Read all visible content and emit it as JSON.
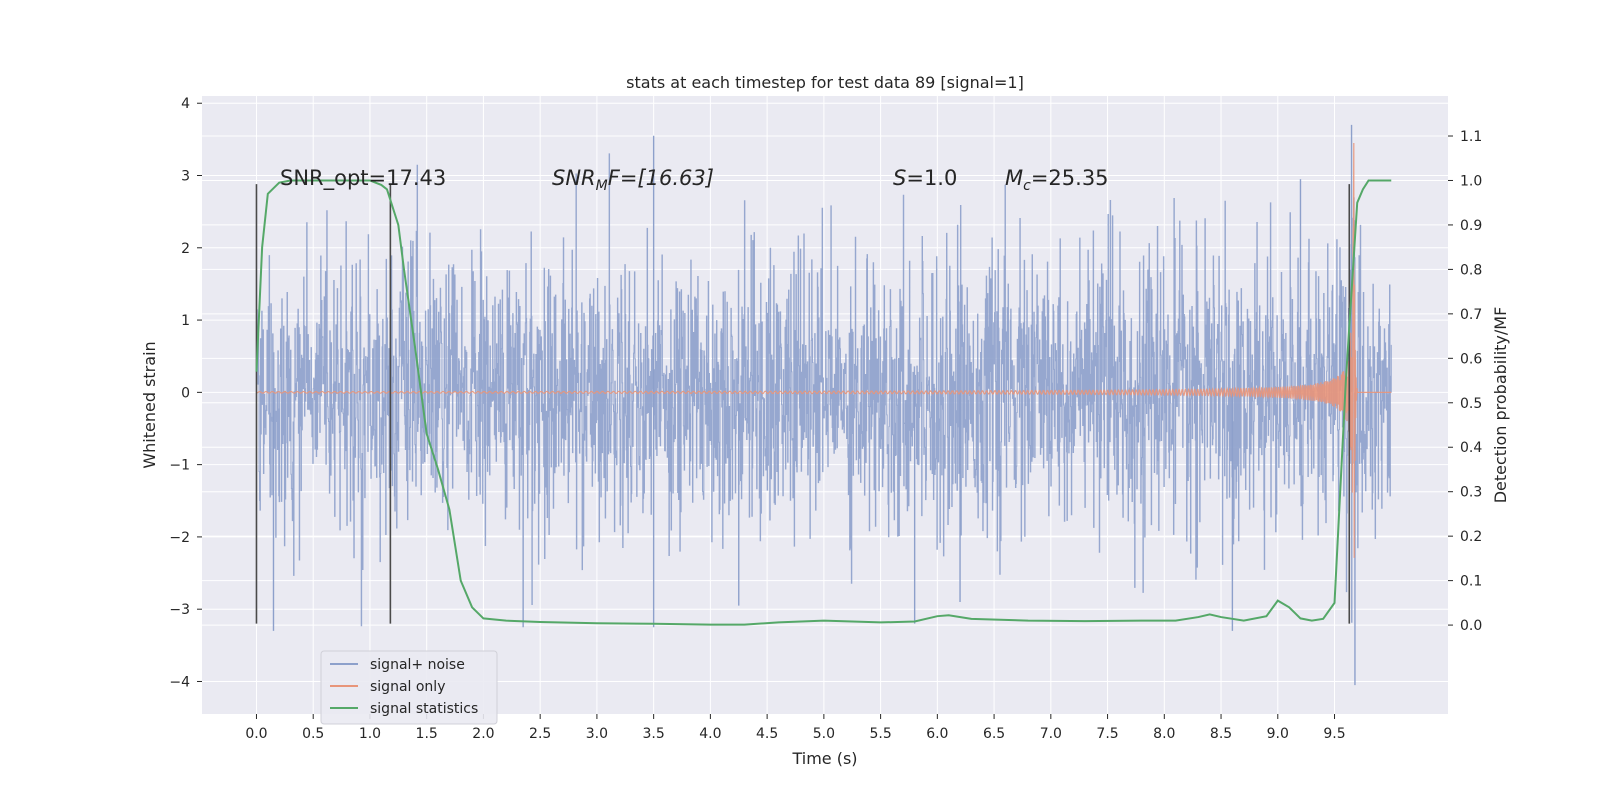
{
  "chart_data": {
    "type": "line",
    "title": "stats at each timestep for test data 89 [signal=1]",
    "xlabel": "Time (s)",
    "ylabel": "Whitened strain",
    "ylabel_right": "Detection probability/MF",
    "xlim": [
      -0.48,
      10.5
    ],
    "ylim": [
      -4.45,
      4.1
    ],
    "ylim_right": [
      -0.2,
      1.19
    ],
    "grid": true,
    "x_ticks": [
      "0.0",
      "0.5",
      "1.0",
      "1.5",
      "2.0",
      "2.5",
      "3.0",
      "3.5",
      "4.0",
      "4.5",
      "5.0",
      "5.5",
      "6.0",
      "6.5",
      "7.0",
      "7.5",
      "8.0",
      "8.5",
      "9.0",
      "9.5"
    ],
    "y_ticks": [
      "4",
      "3",
      "2",
      "1",
      "0",
      "−1",
      "−2",
      "−3",
      "−4"
    ],
    "y_right_ticks": [
      "1.1",
      "1.0",
      "0.9",
      "0.8",
      "0.7",
      "0.6",
      "0.5",
      "0.4",
      "0.3",
      "0.2",
      "0.1",
      "0.0"
    ],
    "colors": {
      "noise": "#8da0cb",
      "signal": "#e8957a",
      "stats": "#55a868",
      "marker": "#4a4a4a",
      "plot_bg": "#eaeaf2",
      "grid": "#ffffff"
    },
    "annotations": [
      {
        "key": "snr_opt",
        "text": "SNR_opt=17.43"
      },
      {
        "key": "snr_mf",
        "text": "SNRMF=[16.63]",
        "base": "SNR",
        "sub": "M",
        "rest": "F=[16.63]"
      },
      {
        "key": "s",
        "text": "S=1.0",
        "italic": "S",
        "rest": "=1.0"
      },
      {
        "key": "mc",
        "text": "Mc=25.35",
        "base": "M",
        "sub": "c",
        "rest": "=25.35"
      }
    ],
    "vertical_markers": [
      {
        "x": 0.0,
        "ymin": -3.2,
        "ymax": 2.88
      },
      {
        "x": 1.18,
        "ymin": -3.2,
        "ymax": 2.88
      },
      {
        "x": 9.63,
        "ymin": -3.2,
        "ymax": 2.88
      }
    ],
    "series": [
      {
        "name": "signal+ noise",
        "kind": "noise",
        "x_range": [
          0.0,
          10.0
        ],
        "typical_abs": 1.8,
        "notable_peaks": [
          {
            "x": 3.5,
            "y": 3.55
          },
          {
            "x": 3.5,
            "y": -3.25
          },
          {
            "x": 4.25,
            "y": -2.95
          },
          {
            "x": 5.8,
            "y": -3.2
          },
          {
            "x": 6.2,
            "y": -2.9
          },
          {
            "x": 0.15,
            "y": -3.3
          },
          {
            "x": 2.35,
            "y": -3.25
          },
          {
            "x": 8.6,
            "y": -3.3
          },
          {
            "x": 9.2,
            "y": 2.95
          },
          {
            "x": 9.65,
            "y": 3.7
          },
          {
            "x": 9.68,
            "y": -4.05
          }
        ]
      },
      {
        "name": "signal only",
        "kind": "chirp",
        "x_range": [
          0.0,
          10.0
        ],
        "merger_time": 9.67,
        "peak_amplitude": 3.45
      },
      {
        "name": "signal statistics",
        "kind": "line",
        "axis": "right",
        "points": [
          [
            0.0,
            0.57
          ],
          [
            0.05,
            0.85
          ],
          [
            0.1,
            0.97
          ],
          [
            0.2,
            0.995
          ],
          [
            0.3,
            1.0
          ],
          [
            0.5,
            1.0
          ],
          [
            0.8,
            1.0
          ],
          [
            1.0,
            1.0
          ],
          [
            1.1,
            0.99
          ],
          [
            1.15,
            0.98
          ],
          [
            1.25,
            0.9
          ],
          [
            1.3,
            0.8
          ],
          [
            1.4,
            0.62
          ],
          [
            1.5,
            0.43
          ],
          [
            1.6,
            0.35
          ],
          [
            1.7,
            0.26
          ],
          [
            1.8,
            0.1
          ],
          [
            1.9,
            0.04
          ],
          [
            2.0,
            0.015
          ],
          [
            2.2,
            0.01
          ],
          [
            2.5,
            0.007
          ],
          [
            3.0,
            0.004
          ],
          [
            3.5,
            0.003
          ],
          [
            4.0,
            0.001
          ],
          [
            4.3,
            0.001
          ],
          [
            4.6,
            0.006
          ],
          [
            5.0,
            0.01
          ],
          [
            5.5,
            0.006
          ],
          [
            5.8,
            0.008
          ],
          [
            6.0,
            0.02
          ],
          [
            6.1,
            0.022
          ],
          [
            6.3,
            0.014
          ],
          [
            6.8,
            0.01
          ],
          [
            7.3,
            0.009
          ],
          [
            7.8,
            0.01
          ],
          [
            8.1,
            0.01
          ],
          [
            8.3,
            0.018
          ],
          [
            8.4,
            0.024
          ],
          [
            8.5,
            0.018
          ],
          [
            8.7,
            0.01
          ],
          [
            8.9,
            0.02
          ],
          [
            9.0,
            0.055
          ],
          [
            9.1,
            0.04
          ],
          [
            9.2,
            0.015
          ],
          [
            9.3,
            0.01
          ],
          [
            9.4,
            0.014
          ],
          [
            9.5,
            0.05
          ],
          [
            9.6,
            0.55
          ],
          [
            9.7,
            0.95
          ],
          [
            9.75,
            0.98
          ],
          [
            9.8,
            1.0
          ],
          [
            10.0,
            1.0
          ]
        ]
      }
    ],
    "legend": {
      "position": "lower-left",
      "entries": [
        {
          "label": "signal+ noise",
          "color": "#8da0cb"
        },
        {
          "label": "signal only",
          "color": "#e8957a"
        },
        {
          "label": "signal statistics",
          "color": "#55a868"
        }
      ]
    }
  }
}
